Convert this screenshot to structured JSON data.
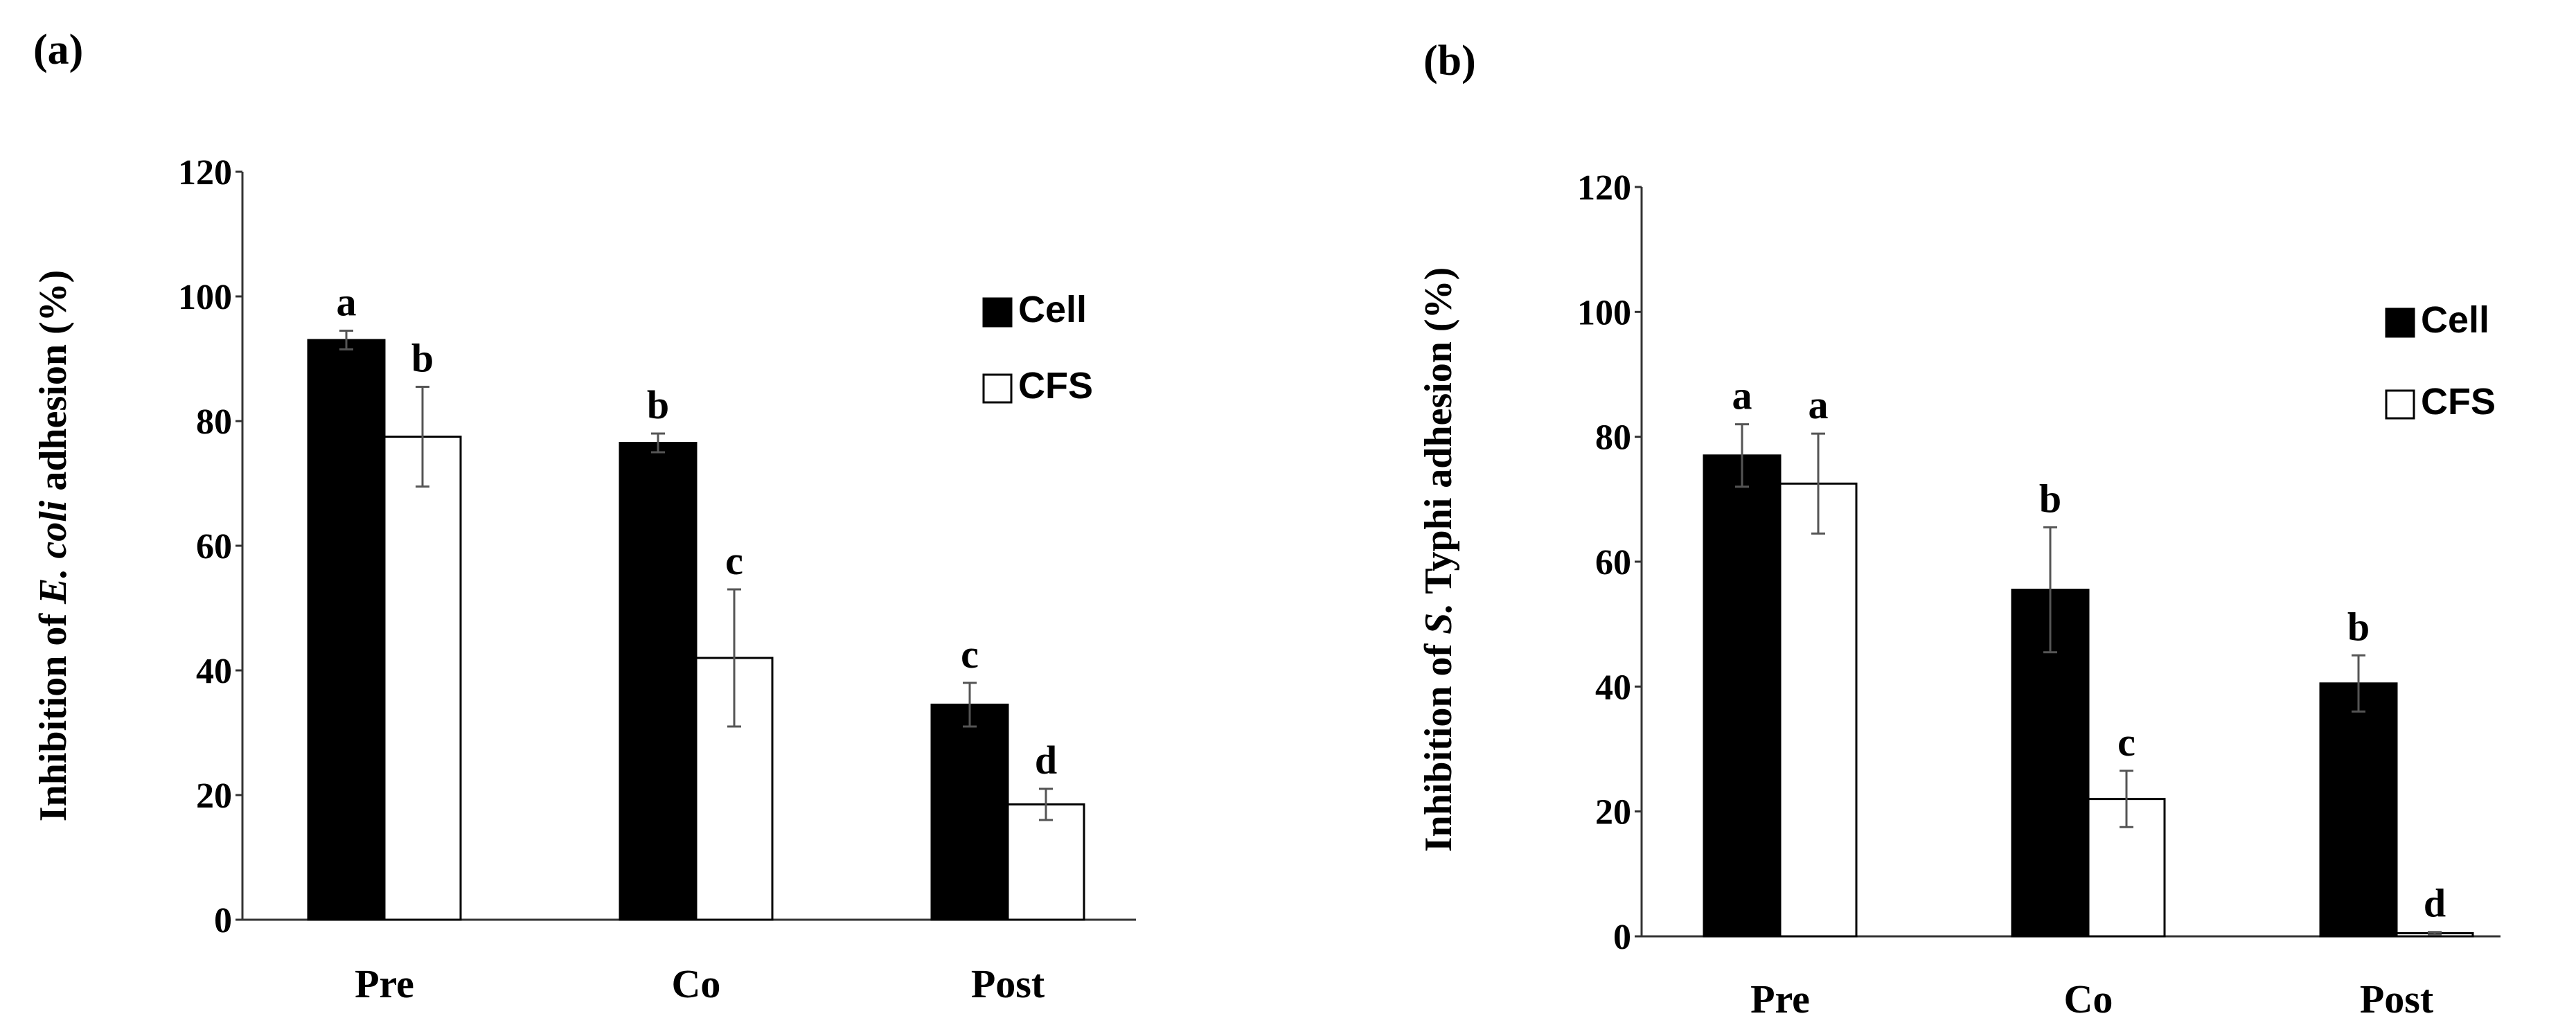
{
  "chart_data": [
    {
      "panel": "(a)",
      "type": "bar",
      "categories": [
        "Pre",
        "Co",
        "Post"
      ],
      "ylabel_prefix": "Inhibition of ",
      "ylabel_italic": "E. coli",
      "ylabel_suffix": " adhesion (%)",
      "ylim": [
        0,
        120
      ],
      "yticks": [
        "0",
        "20",
        "40",
        "60",
        "80",
        "100",
        "120"
      ],
      "legend": [
        "Cell",
        "CFS"
      ],
      "series": [
        {
          "name": "Cell",
          "color": "#000000",
          "values": [
            93,
            76.5,
            34.5
          ],
          "errors": [
            1.5,
            1.5,
            3.5
          ],
          "letters": [
            "a",
            "b",
            "c"
          ]
        },
        {
          "name": "CFS",
          "color": "#ffffff",
          "values": [
            77.5,
            42,
            18.5
          ],
          "errors": [
            8,
            11,
            2.5
          ],
          "letters": [
            "b",
            "c",
            "d"
          ]
        }
      ]
    },
    {
      "panel": "(b)",
      "type": "bar",
      "categories": [
        "Pre",
        "Co",
        "Post"
      ],
      "ylabel_prefix": "Inhibition of ",
      "ylabel_italic": "S.",
      "ylabel_suffix": " Typhi adhesion (%)",
      "ylim": [
        0,
        120
      ],
      "yticks": [
        "0",
        "20",
        "40",
        "60",
        "80",
        "100",
        "120"
      ],
      "legend": [
        "Cell",
        "CFS"
      ],
      "series": [
        {
          "name": "Cell",
          "color": "#000000",
          "values": [
            77,
            55.5,
            40.5
          ],
          "errors": [
            5,
            10,
            4.5
          ],
          "letters": [
            "a",
            "b",
            "b"
          ]
        },
        {
          "name": "CFS",
          "color": "#ffffff",
          "values": [
            72.5,
            22,
            0.5
          ],
          "errors": [
            8,
            4.5,
            0.2
          ],
          "letters": [
            "a",
            "c",
            "d"
          ]
        }
      ]
    }
  ]
}
